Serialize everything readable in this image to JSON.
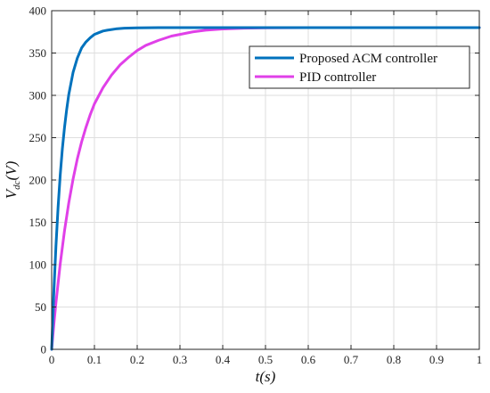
{
  "chart_data": {
    "type": "line",
    "xlabel": "t(s)",
    "ylabel": "V_dc(V)",
    "xlim": [
      0,
      1
    ],
    "ylim": [
      0,
      400
    ],
    "xticks": [
      0,
      0.1,
      0.2,
      0.3,
      0.4,
      0.5,
      0.6,
      0.7,
      0.8,
      0.9,
      1
    ],
    "yticks": [
      0,
      50,
      100,
      150,
      200,
      250,
      300,
      350,
      400
    ],
    "xtick_labels": [
      "0",
      "0.1",
      "0.2",
      "0.3",
      "0.4",
      "0.5",
      "0.6",
      "0.7",
      "0.8",
      "0.9",
      "1"
    ],
    "ytick_labels": [
      "0",
      "50",
      "100",
      "150",
      "200",
      "250",
      "300",
      "350",
      "400"
    ],
    "grid": true,
    "legend_position": "top-right",
    "series": [
      {
        "name": "Proposed ACM controller",
        "color": "#0072BD",
        "x": [
          0,
          0.005,
          0.01,
          0.015,
          0.02,
          0.025,
          0.03,
          0.035,
          0.04,
          0.05,
          0.06,
          0.07,
          0.08,
          0.09,
          0.1,
          0.11,
          0.12,
          0.13,
          0.15,
          0.17,
          0.2,
          0.25,
          0.3,
          0.4,
          0.5,
          0.6,
          0.7,
          0.8,
          0.9,
          1.0
        ],
        "y": [
          0,
          67,
          122,
          168,
          206,
          237,
          262,
          283,
          301,
          327,
          344,
          356,
          363,
          368,
          372,
          374,
          376,
          377,
          378.5,
          379.3,
          379.8,
          380,
          380,
          380,
          380,
          380,
          380,
          380,
          380,
          380
        ]
      },
      {
        "name": "PID controller",
        "color": "#E040E8",
        "x": [
          0,
          0.005,
          0.01,
          0.02,
          0.03,
          0.04,
          0.05,
          0.06,
          0.07,
          0.08,
          0.09,
          0.1,
          0.12,
          0.14,
          0.16,
          0.18,
          0.2,
          0.22,
          0.25,
          0.28,
          0.3,
          0.33,
          0.36,
          0.4,
          0.45,
          0.5,
          0.6,
          0.7,
          0.8,
          0.9,
          1.0
        ],
        "y": [
          0,
          29,
          55,
          101,
          140,
          173,
          201,
          225,
          245,
          262,
          277,
          290,
          309,
          324,
          336,
          345,
          353,
          359,
          365,
          370,
          372,
          375,
          377,
          378.4,
          379.3,
          379.7,
          380,
          380,
          380,
          380,
          380
        ]
      }
    ]
  }
}
